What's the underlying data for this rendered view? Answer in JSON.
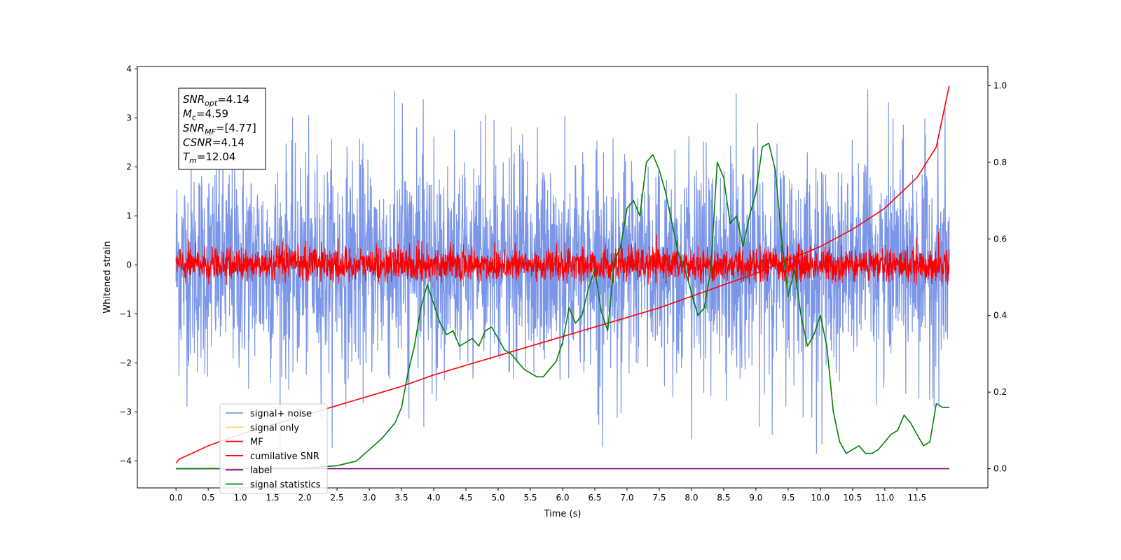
{
  "chart_data": {
    "type": "line",
    "xlabel": "Time (s)",
    "ylabel": "Whitened strain",
    "xlim": [
      -0.6,
      12.6
    ],
    "ylim": [
      -4.55,
      4.05
    ],
    "y2lim": [
      -0.05,
      1.05
    ],
    "x_ticks": [
      "0.0",
      "0.5",
      "1.0",
      "1.5",
      "2.0",
      "2.5",
      "3.0",
      "3.5",
      "4.0",
      "4.5",
      "5.0",
      "5.5",
      "6.0",
      "6.5",
      "7.0",
      "7.5",
      "8.0",
      "8.5",
      "9.0",
      "9.5",
      "10.0",
      "10.5",
      "11.0",
      "11.5"
    ],
    "y_ticks": [
      4,
      3,
      2,
      1,
      0,
      -1,
      -2,
      -3,
      -4
    ],
    "y2_ticks": [
      "0.0",
      "0.2",
      "0.4",
      "0.6",
      "0.8",
      "1.0"
    ],
    "grid": false,
    "legend_position": "lower-left",
    "annotation": {
      "lines": [
        {
          "sym": "SNR",
          "sub": "opt",
          "val": "=4.14"
        },
        {
          "sym": "M",
          "sub": "c",
          "val": "=4.59"
        },
        {
          "sym": "SNR",
          "sub": "MF",
          "val": "=[4.77]"
        },
        {
          "sym": "CSNR",
          "sub": "",
          "val": "=4.14"
        },
        {
          "sym": "T",
          "sub": "m",
          "val": "=12.04"
        }
      ]
    },
    "series": [
      {
        "name": "signal+ noise",
        "color": "#7b96e8",
        "axis": "left",
        "kind": "noise",
        "x_range": [
          0,
          12.0
        ],
        "mean": 0,
        "typical_envelope": 2.2,
        "max": 3.6,
        "min": -4.1
      },
      {
        "name": "signal only",
        "color": "#ffd27a",
        "axis": "left",
        "kind": "line",
        "x": [],
        "y": []
      },
      {
        "name": "MF",
        "color": "#ff0000",
        "axis": "left",
        "kind": "noise",
        "x_range": [
          0,
          12.0
        ],
        "mean": 0,
        "typical_envelope": 0.35,
        "max": 0.9,
        "min": -0.4
      },
      {
        "name": "cumilative SNR",
        "color": "#ff0000",
        "axis": "right",
        "kind": "line",
        "x": [
          0.0,
          0.05,
          0.5,
          1.0,
          1.5,
          2.0,
          2.5,
          3.0,
          3.5,
          4.0,
          4.5,
          5.0,
          5.5,
          6.0,
          6.5,
          7.0,
          7.5,
          8.0,
          8.5,
          9.0,
          9.5,
          10.0,
          10.5,
          11.0,
          11.5,
          11.8,
          12.0
        ],
        "y": [
          0.015,
          0.025,
          0.06,
          0.09,
          0.115,
          0.14,
          0.165,
          0.19,
          0.215,
          0.245,
          0.27,
          0.295,
          0.32,
          0.345,
          0.37,
          0.395,
          0.42,
          0.45,
          0.48,
          0.51,
          0.545,
          0.58,
          0.625,
          0.68,
          0.76,
          0.84,
          1.0
        ]
      },
      {
        "name": "label",
        "color": "#800080",
        "axis": "right",
        "kind": "line",
        "x": [
          0.0,
          12.0
        ],
        "y": [
          0.0,
          0.0
        ]
      },
      {
        "name": "signal statistics",
        "color": "#008000",
        "axis": "right",
        "kind": "line",
        "x": [
          0.0,
          2.0,
          2.5,
          2.8,
          3.0,
          3.2,
          3.4,
          3.5,
          3.6,
          3.7,
          3.8,
          3.9,
          4.0,
          4.1,
          4.2,
          4.3,
          4.4,
          4.5,
          4.6,
          4.7,
          4.8,
          4.9,
          5.0,
          5.1,
          5.2,
          5.3,
          5.4,
          5.5,
          5.6,
          5.7,
          5.8,
          5.9,
          6.0,
          6.1,
          6.2,
          6.3,
          6.4,
          6.5,
          6.6,
          6.7,
          6.8,
          6.9,
          7.0,
          7.1,
          7.2,
          7.3,
          7.4,
          7.5,
          7.6,
          7.7,
          7.8,
          7.9,
          8.0,
          8.1,
          8.2,
          8.3,
          8.4,
          8.5,
          8.6,
          8.7,
          8.8,
          8.9,
          9.0,
          9.1,
          9.2,
          9.3,
          9.4,
          9.5,
          9.6,
          9.7,
          9.8,
          9.9,
          10.0,
          10.1,
          10.2,
          10.3,
          10.4,
          10.5,
          10.6,
          10.7,
          10.8,
          10.9,
          11.0,
          11.1,
          11.2,
          11.3,
          11.4,
          11.5,
          11.6,
          11.7,
          11.8,
          11.9,
          12.0
        ],
        "y": [
          0.0,
          0.002,
          0.008,
          0.02,
          0.05,
          0.08,
          0.12,
          0.16,
          0.25,
          0.32,
          0.42,
          0.48,
          0.43,
          0.38,
          0.35,
          0.36,
          0.32,
          0.33,
          0.34,
          0.32,
          0.36,
          0.37,
          0.34,
          0.31,
          0.3,
          0.28,
          0.26,
          0.25,
          0.24,
          0.24,
          0.26,
          0.28,
          0.33,
          0.42,
          0.38,
          0.4,
          0.47,
          0.52,
          0.41,
          0.36,
          0.54,
          0.58,
          0.68,
          0.7,
          0.66,
          0.8,
          0.82,
          0.78,
          0.72,
          0.64,
          0.56,
          0.52,
          0.46,
          0.4,
          0.42,
          0.52,
          0.8,
          0.76,
          0.64,
          0.66,
          0.58,
          0.66,
          0.72,
          0.84,
          0.85,
          0.78,
          0.6,
          0.45,
          0.52,
          0.4,
          0.32,
          0.35,
          0.4,
          0.32,
          0.15,
          0.07,
          0.04,
          0.05,
          0.06,
          0.04,
          0.04,
          0.05,
          0.07,
          0.09,
          0.1,
          0.14,
          0.12,
          0.09,
          0.06,
          0.07,
          0.17,
          0.16,
          0.16
        ]
      }
    ]
  }
}
